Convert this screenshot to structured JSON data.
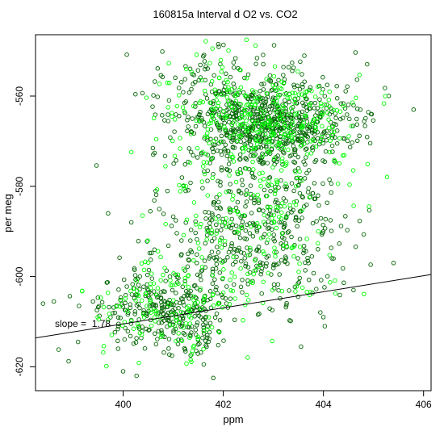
{
  "chart_data": {
    "type": "scatter",
    "title": "160815a   Interval d O2 vs. CO2",
    "xlabel": "ppm",
    "ylabel": "per meg",
    "xlim": [
      398.25,
      406.15
    ],
    "ylim": [
      -625.3,
      -546.4
    ],
    "x_ticks": [
      400,
      402,
      404,
      406
    ],
    "y_ticks": [
      -620,
      -600,
      -580,
      -560
    ],
    "x_tick_labels": [
      "400",
      "402",
      "404",
      "406"
    ],
    "y_tick_labels": [
      "-620",
      "-600",
      "-580",
      "-560"
    ],
    "grid": false,
    "legend": "none",
    "annotation": "slope =  1.78",
    "fit_line": {
      "slope": 1.78,
      "intercept": -1322.5,
      "x_range": [
        398.25,
        406.15
      ]
    },
    "series": [
      {
        "color": "#006400",
        "marker": "open-circle",
        "approximate_count": 1500
      },
      {
        "color": "#00ff00",
        "marker": "open-circle",
        "approximate_count": 650
      }
    ],
    "point_clusters": [
      {
        "x": 403.0,
        "y": -566.0,
        "sx": 0.85,
        "sy": 5.0,
        "weight": 0.42
      },
      {
        "x": 401.9,
        "y": -563.0,
        "sx": 0.75,
        "sy": 9.0,
        "weight": 0.12
      },
      {
        "x": 402.6,
        "y": -590.0,
        "sx": 0.9,
        "sy": 8.5,
        "weight": 0.26
      },
      {
        "x": 400.9,
        "y": -607.0,
        "sx": 0.7,
        "sy": 5.5,
        "weight": 0.2
      }
    ],
    "outlier_points": [
      {
        "x": 398.4,
        "y": -606.0
      },
      {
        "x": 399.1,
        "y": -614.5
      },
      {
        "x": 399.7,
        "y": -586.0
      },
      {
        "x": 405.8,
        "y": -563.0
      },
      {
        "x": 405.4,
        "y": -597.0
      },
      {
        "x": 404.6,
        "y": -603.0
      },
      {
        "x": 404.0,
        "y": -609.0
      },
      {
        "x": 401.9,
        "y": -548.5
      },
      {
        "x": 400.0,
        "y": -621.0
      },
      {
        "x": 401.8,
        "y": -622.5
      },
      {
        "x": 399.9,
        "y": -616.0
      },
      {
        "x": 404.2,
        "y": -596.0
      }
    ],
    "colors": {
      "background": "#ffffff",
      "axis": "#000000",
      "fit_line": "#000000"
    }
  }
}
